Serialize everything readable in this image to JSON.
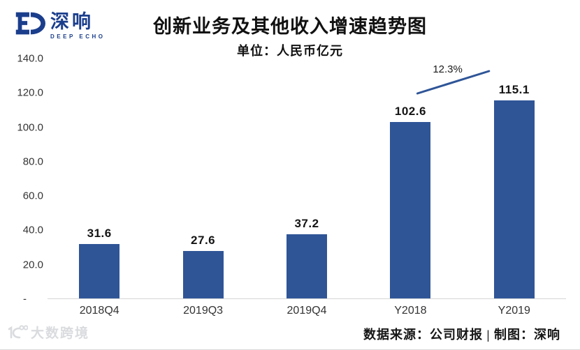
{
  "logo": {
    "brand_cn": "深响",
    "brand_en": "DEEP ECHO",
    "color": "#1B3E8C"
  },
  "header": {
    "title": "创新业务及其他收入增速趋势图",
    "subtitle": "单位：人民币亿元"
  },
  "chart_data": {
    "type": "bar",
    "title": "创新业务及其他收入增速趋势图",
    "unit_label": "单位：人民币亿元",
    "categories": [
      "2018Q4",
      "2019Q3",
      "2019Q4",
      "Y2018",
      "Y2019"
    ],
    "values": [
      31.6,
      27.6,
      37.2,
      102.6,
      115.1
    ],
    "value_labels": [
      "31.6",
      "27.6",
      "37.2",
      "102.6",
      "115.1"
    ],
    "ylim": [
      0,
      140
    ],
    "ytick_step": 20,
    "ytick_labels": [
      "140.0",
      "120.0",
      "100.0",
      "80.0",
      "60.0",
      "40.0",
      "20.0",
      "-"
    ],
    "bar_color": "#2F5597",
    "grid": false,
    "legend": false,
    "annotation": {
      "label": "12.3%",
      "from_category": "Y2018",
      "to_category": "Y2019",
      "line_color": "#2F5597"
    }
  },
  "footer": {
    "credit": "数据来源：公司财报 | 制图：深响"
  },
  "watermark": {
    "text": "大数跨境"
  }
}
